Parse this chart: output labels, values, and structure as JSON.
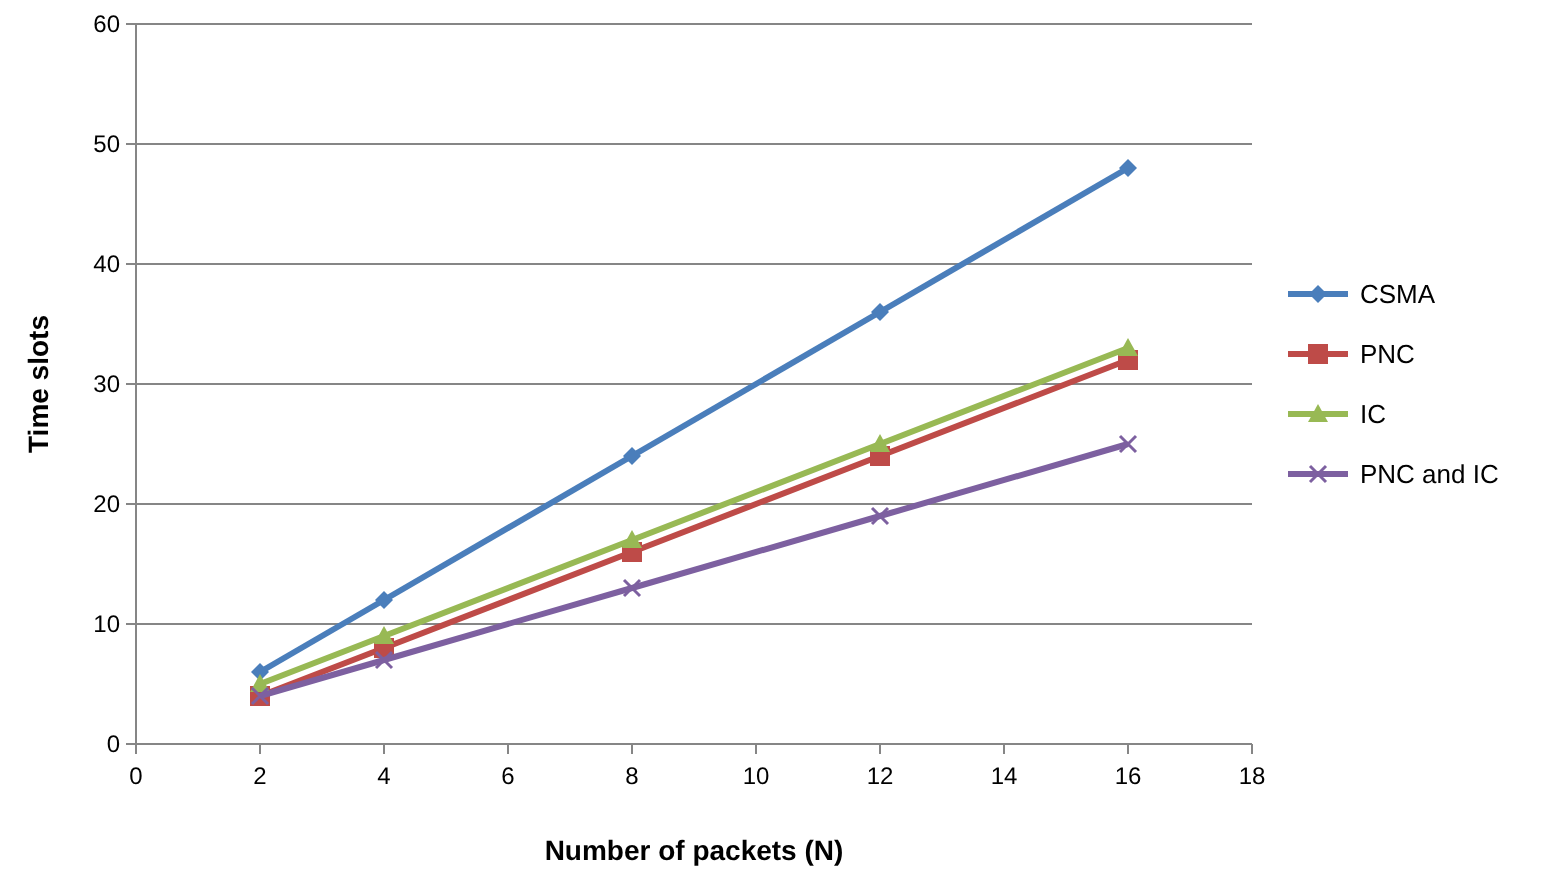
{
  "chart_data": {
    "type": "line",
    "xlabel": "Number of packets (N)",
    "ylabel": "Time slots",
    "x": [
      2,
      4,
      8,
      12,
      16
    ],
    "xlim": [
      0,
      18
    ],
    "xticks": [
      0,
      2,
      4,
      6,
      8,
      10,
      12,
      14,
      16,
      18
    ],
    "ylim": [
      0,
      60
    ],
    "yticks": [
      0,
      10,
      20,
      30,
      40,
      50,
      60
    ],
    "grid": "y",
    "legend": "right",
    "line_style": "solid",
    "series": [
      {
        "name": "CSMA",
        "color": "#4a7ebb",
        "marker": "diamond",
        "values": [
          6,
          12,
          24,
          36,
          48
        ]
      },
      {
        "name": "PNC",
        "color": "#be4b48",
        "marker": "square",
        "values": [
          4,
          8,
          16,
          24,
          32
        ]
      },
      {
        "name": "IC",
        "color": "#98b954",
        "marker": "triangle",
        "values": [
          5,
          9,
          17,
          25,
          33
        ]
      },
      {
        "name": "PNC and IC",
        "color": "#7d60a0",
        "marker": "cross",
        "values": [
          4,
          7,
          13,
          19,
          25
        ]
      }
    ]
  }
}
